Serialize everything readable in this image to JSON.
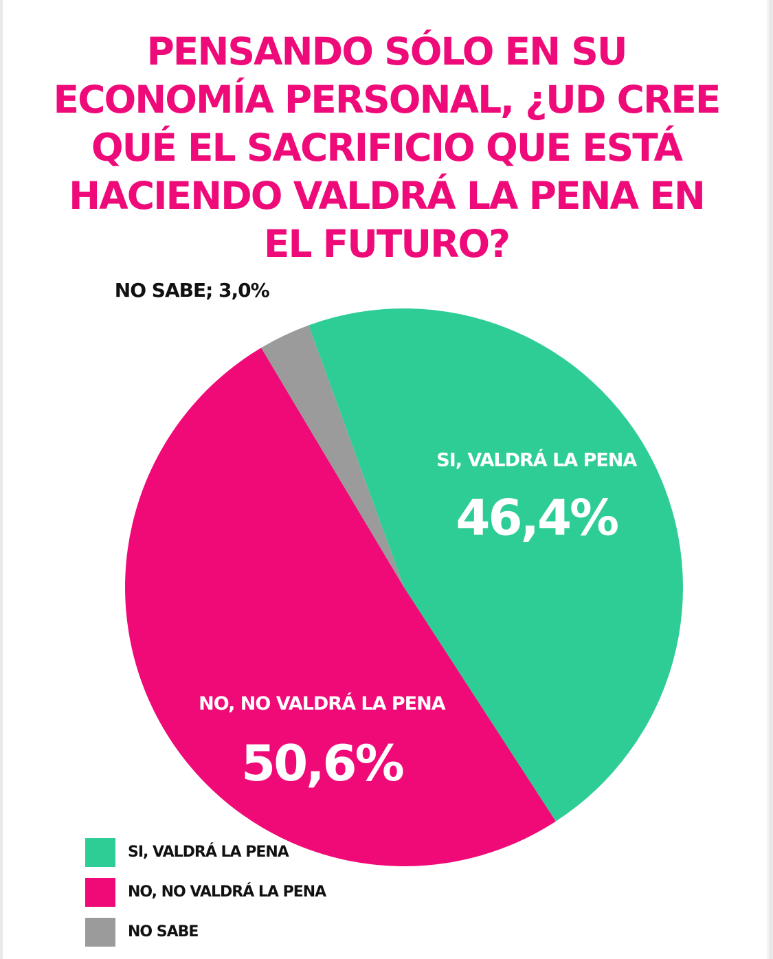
{
  "title": "PENSANDO SÓLO EN SU ECONOMÍA PERSONAL, ¿UD CREE QUÉ EL SACRIFICIO QUE ESTÁ HACIENDO VALDRÁ LA PENA EN EL FUTURO?",
  "chart_data": {
    "type": "pie",
    "title": "PENSANDO SÓLO EN SU ECONOMÍA PERSONAL, ¿UD CREE QUÉ EL SACRIFICIO QUE ESTÁ HACIENDO VALDRÁ LA PENA EN EL FUTURO?",
    "slices": [
      {
        "label": "SI, VALDRÁ LA PENA",
        "value": 46.4,
        "display": "46,4%",
        "color": "#2ecd96"
      },
      {
        "label": "NO, NO VALDRÁ LA PENA",
        "value": 50.6,
        "display": "50,6%",
        "color": "#ef0a77"
      },
      {
        "label": "NO SABE",
        "value": 3.0,
        "display": "NO SABE; 3,0%",
        "color": "#9b9b9b"
      }
    ],
    "legend": {
      "position": "bottom-left",
      "entries": [
        "SI, VALDRÁ LA PENA",
        "NO, NO VALDRÁ LA PENA",
        "NO SABE"
      ]
    }
  }
}
